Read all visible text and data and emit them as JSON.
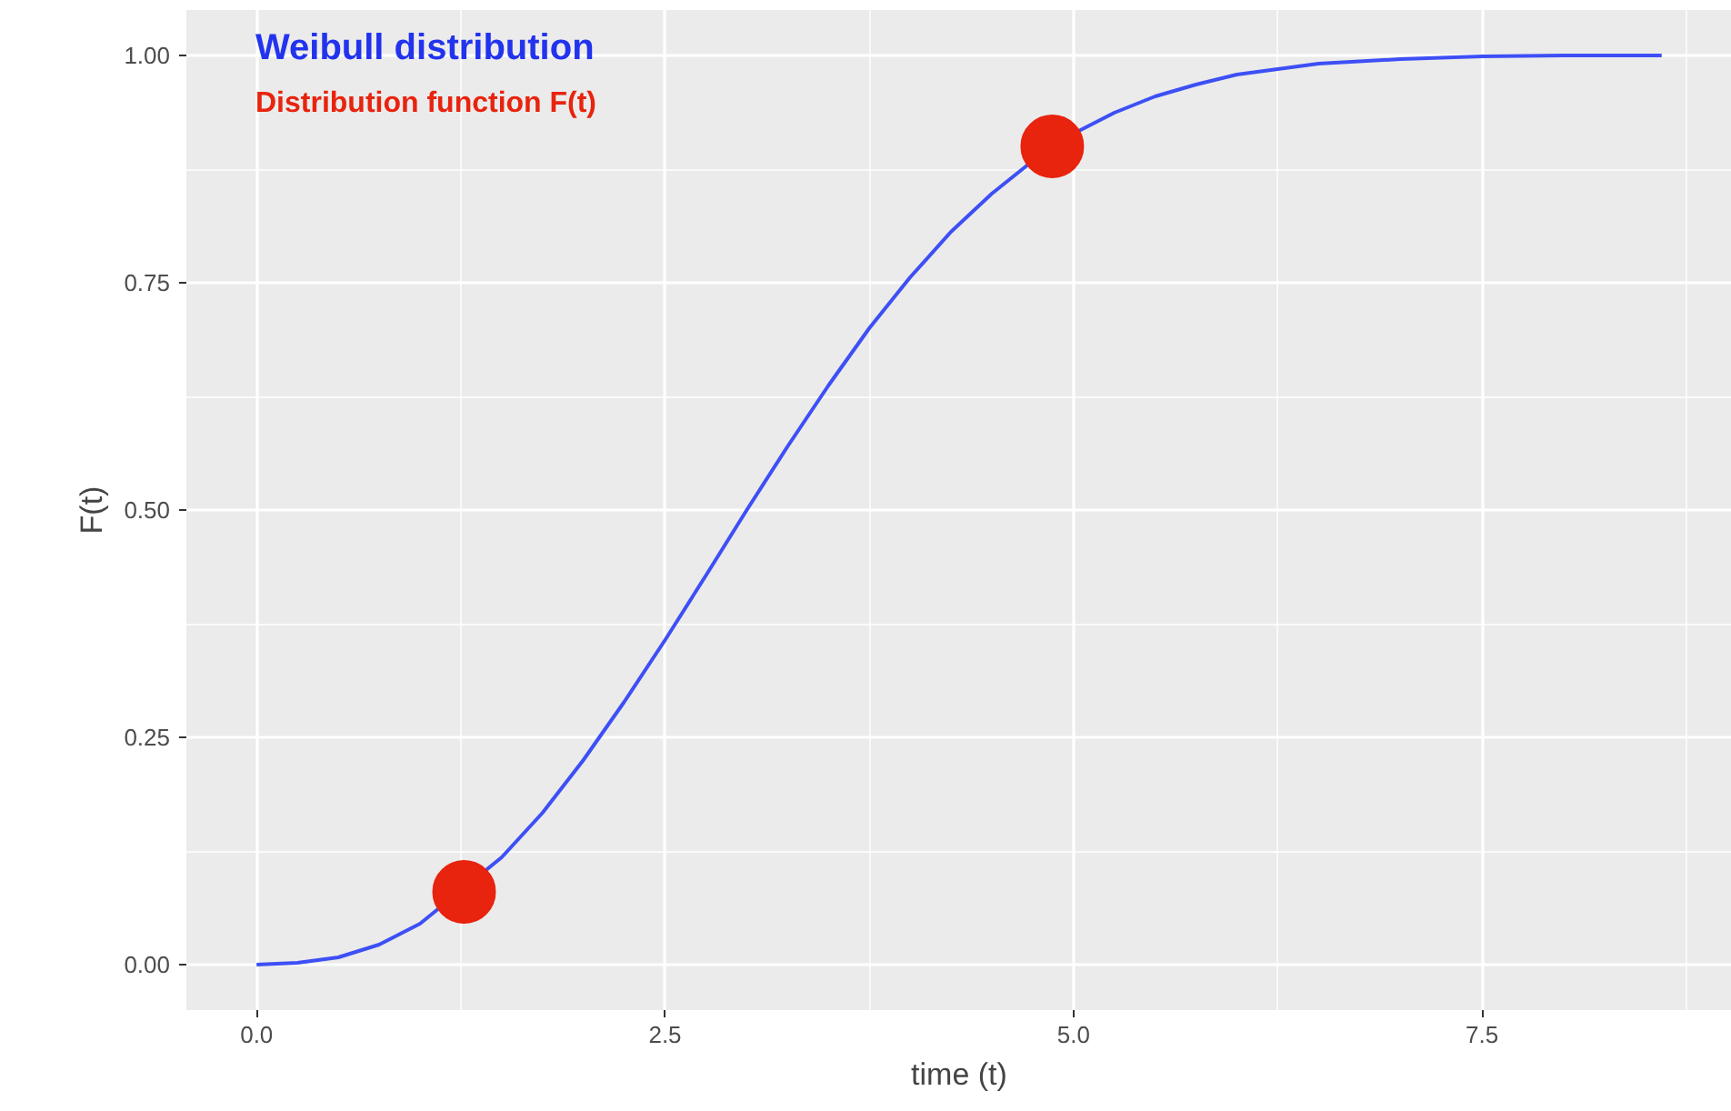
{
  "chart_data": {
    "type": "line",
    "title": "Weibull distribution",
    "subtitle": "Distribution function F(t)",
    "xlabel": "time (t)",
    "ylabel": "F(t)",
    "xlim": [
      -0.43,
      9.03
    ],
    "ylim": [
      -0.05,
      1.05
    ],
    "xticks": [
      {
        "value": 0,
        "label": "0.0"
      },
      {
        "value": 2.5,
        "label": "2.5"
      },
      {
        "value": 5,
        "label": "5.0"
      },
      {
        "value": 7.5,
        "label": "7.5"
      }
    ],
    "yticks": [
      {
        "value": 0,
        "label": "0.00"
      },
      {
        "value": 0.25,
        "label": "0.25"
      },
      {
        "value": 0.5,
        "label": "0.50"
      },
      {
        "value": 0.75,
        "label": "0.75"
      },
      {
        "value": 1,
        "label": "1.00"
      }
    ],
    "grid": true,
    "series": [
      {
        "type": "line",
        "color": "#3d4ff5",
        "marker": "none",
        "line_style": "solid",
        "x": [
          0,
          0.25,
          0.5,
          0.75,
          1.0,
          1.5,
          1.75,
          2.0,
          2.25,
          2.5,
          2.75,
          3.0,
          3.25,
          3.5,
          3.75,
          4.0,
          4.25,
          4.5,
          4.75,
          5.0,
          5.25,
          5.5,
          5.75,
          6.0,
          6.5,
          7.0,
          7.5,
          8.0,
          8.6
        ],
        "values": [
          0,
          0.002,
          0.008,
          0.022,
          0.045,
          0.118,
          0.167,
          0.225,
          0.289,
          0.357,
          0.428,
          0.5,
          0.57,
          0.637,
          0.7,
          0.756,
          0.806,
          0.848,
          0.884,
          0.914,
          0.937,
          0.955,
          0.968,
          0.979,
          0.991,
          0.996,
          0.999,
          1.0,
          1.0
        ]
      },
      {
        "type": "scatter",
        "color": "#e8230e",
        "marker": "circle",
        "x": [
          1.27,
          4.87
        ],
        "values": [
          0.08,
          0.9
        ]
      }
    ]
  }
}
